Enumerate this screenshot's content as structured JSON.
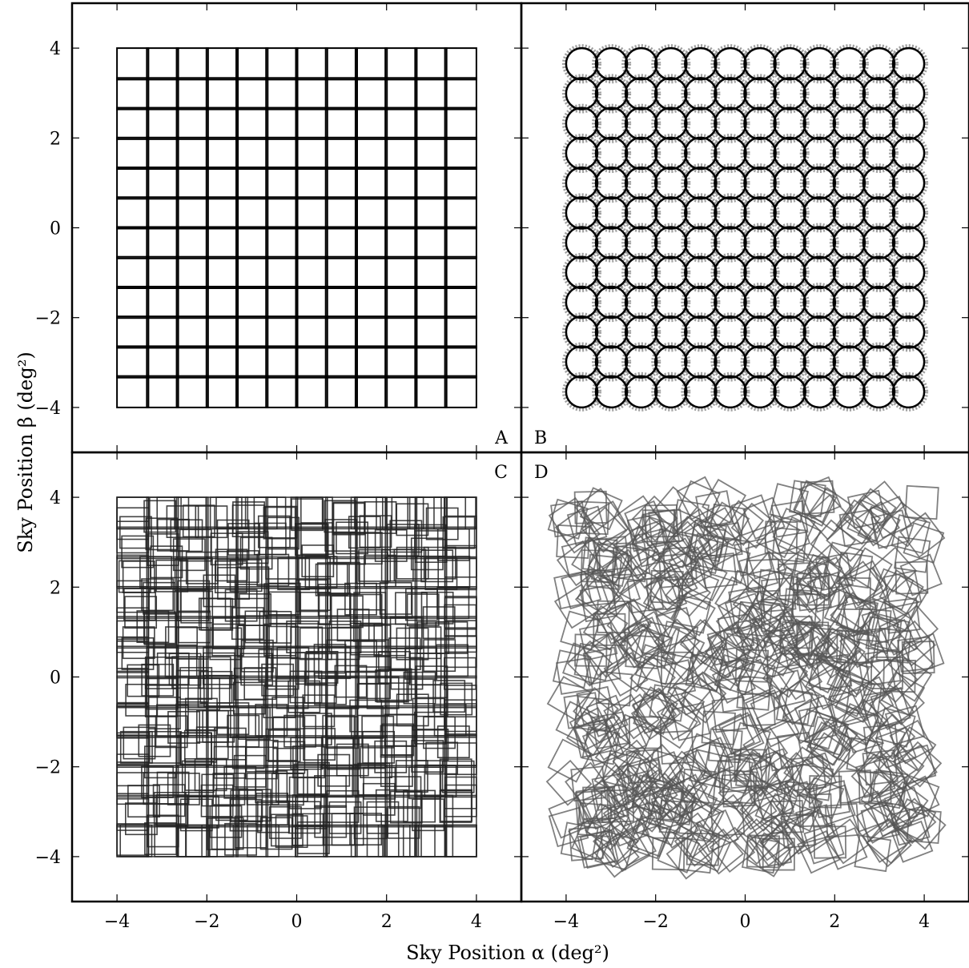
{
  "figure": {
    "xlabel": "Sky Position α (deg²)",
    "ylabel": "Sky Position β (deg²)"
  },
  "chart_data": [
    {
      "panel": "A",
      "type": "pattern",
      "pattern": "regular grid of square pointings",
      "xlim": [
        -5,
        5
      ],
      "ylim": [
        -5,
        5
      ],
      "xticks": [
        -4,
        -2,
        0,
        2,
        4
      ],
      "yticks": [
        -4,
        -2,
        0,
        2,
        4
      ],
      "ytick_labels": [
        "−4",
        "−2",
        "0",
        "2",
        "4"
      ],
      "region": [
        -4,
        4
      ],
      "pointings_per_side": 12,
      "pointing_size": 0.7,
      "color": "#000000"
    },
    {
      "panel": "B",
      "type": "pattern",
      "pattern": "regular grid of circular pointings",
      "xlim": [
        -5,
        5
      ],
      "ylim": [
        -5,
        5
      ],
      "xticks": [
        -4,
        -2,
        0,
        2,
        4
      ],
      "yticks": [
        -4,
        -2,
        0,
        2,
        4
      ],
      "region": [
        -4,
        4
      ],
      "pointings_per_side": 12,
      "pointing_diameter": 0.7,
      "color": "#000000",
      "halo_color": "#888888"
    },
    {
      "panel": "C",
      "type": "pattern",
      "pattern": "dithered grid of square pointings (random axis-aligned offsets)",
      "xlim": [
        -5,
        5
      ],
      "ylim": [
        -5,
        5
      ],
      "xticks": [
        -4,
        -2,
        0,
        2,
        4
      ],
      "yticks": [
        -4,
        -2,
        0,
        2,
        4
      ],
      "xtick_labels": [
        "−4",
        "−2",
        "0",
        "2",
        "4"
      ],
      "ytick_labels": [
        "−4",
        "−2",
        "0",
        "2",
        "4"
      ],
      "region": [
        -4,
        4
      ],
      "pointings_per_side": 12,
      "pointing_size": 0.7,
      "color": "#222222"
    },
    {
      "panel": "D",
      "type": "pattern",
      "pattern": "randomly positioned and rotated square pointings",
      "xlim": [
        -5,
        5
      ],
      "ylim": [
        -5,
        5
      ],
      "xticks": [
        -4,
        -2,
        0,
        2,
        4
      ],
      "yticks": [
        -4,
        -2,
        0,
        2,
        4
      ],
      "xtick_labels": [
        "−4",
        "−2",
        "0",
        "2",
        "4"
      ],
      "region": [
        -4,
        4
      ],
      "pointing_count": 600,
      "pointing_size": 0.7,
      "color": "#555555"
    }
  ]
}
